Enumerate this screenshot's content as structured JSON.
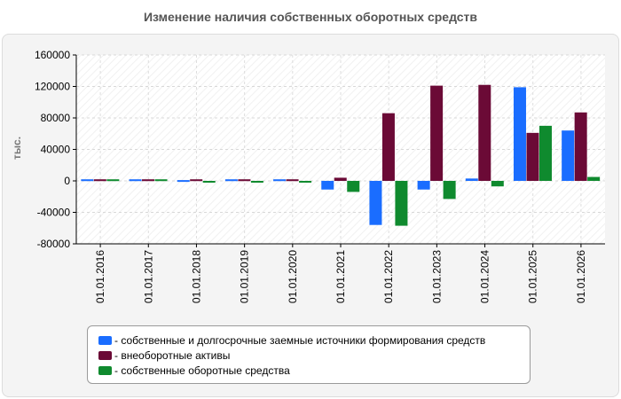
{
  "chart_data": {
    "type": "bar",
    "title": "Изменение наличия собственных оборотных средств",
    "ylabel": "тыс.",
    "xlabel": "",
    "ylim": [
      -80000,
      160000
    ],
    "yticks": [
      160000,
      120000,
      80000,
      40000,
      0,
      -40000,
      -80000
    ],
    "ytick_labels": [
      "160000",
      "120000",
      "80000",
      "40000",
      "0",
      "-40000",
      "-80000"
    ],
    "grid": true,
    "legend_position": "bottom",
    "categories": [
      "01.01.2016",
      "01.01.2017",
      "01.01.2018",
      "01.01.2019",
      "01.01.2020",
      "01.01.2021",
      "01.01.2022",
      "01.01.2023",
      "01.01.2024",
      "01.01.2025",
      "01.01.2026"
    ],
    "series": [
      {
        "name": "собственные и долгосрочные заемные источники формирования средств",
        "color": "#1a6dff",
        "values": [
          2000,
          2000,
          1000,
          2000,
          2000,
          -11000,
          -56000,
          -11000,
          3000,
          119000,
          64000
        ]
      },
      {
        "name": "внеоборотные активы",
        "color": "#6b0a36",
        "values": [
          2000,
          2000,
          2000,
          2000,
          2000,
          4000,
          86000,
          121000,
          122000,
          61000,
          87000
        ]
      },
      {
        "name": "собственные оборотные средства",
        "color": "#0f8a2e",
        "values": [
          2000,
          2000,
          -1000,
          -1000,
          -1000,
          -14000,
          -57000,
          -23000,
          -7000,
          70000,
          5000
        ]
      }
    ]
  }
}
